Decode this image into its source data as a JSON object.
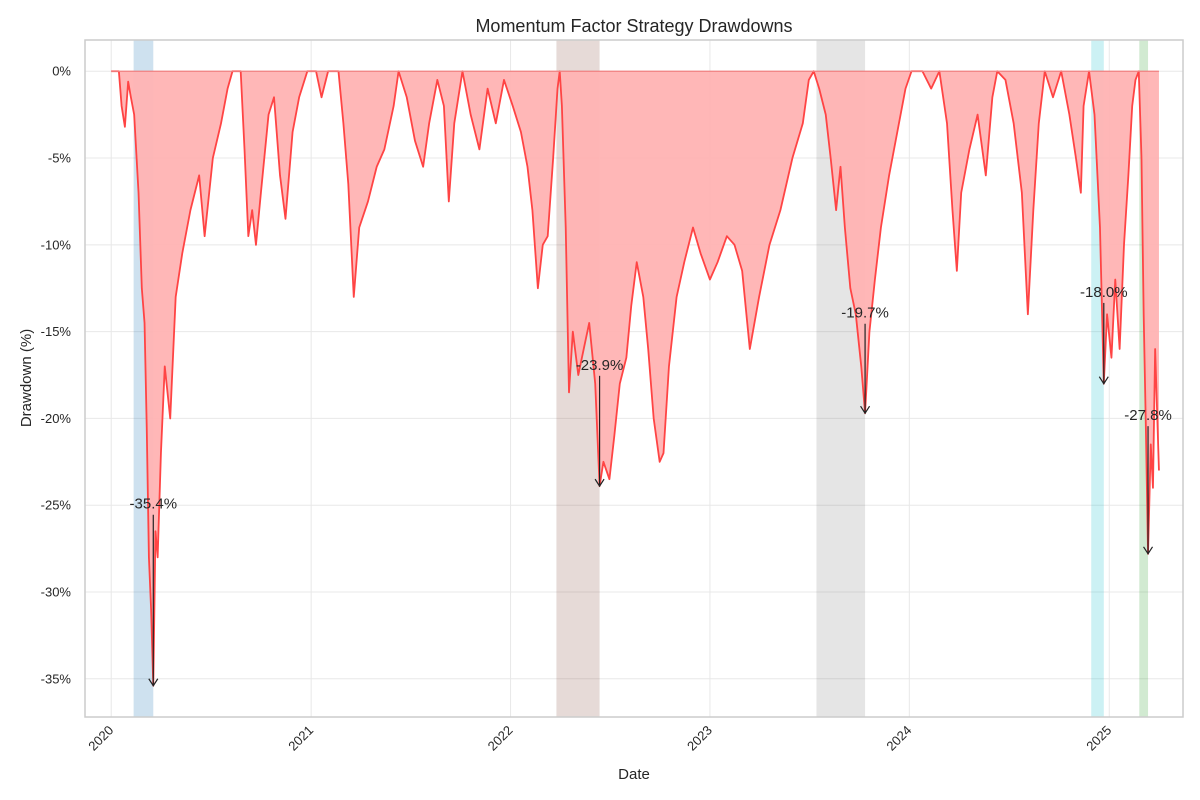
{
  "chart_data": {
    "type": "area",
    "title": "Momentum Factor Strategy Drawdowns",
    "xlabel": "Date",
    "ylabel": "Drawdown (%)",
    "xlim": [
      "2019-11-14",
      "2025-05-16"
    ],
    "ylim": [
      -37.2,
      1.8
    ],
    "grid": true,
    "x_ticks": [
      {
        "date": "2020-01-01",
        "label": "2020"
      },
      {
        "date": "2021-01-01",
        "label": "2021"
      },
      {
        "date": "2022-01-01",
        "label": "2022"
      },
      {
        "date": "2023-01-01",
        "label": "2023"
      },
      {
        "date": "2024-01-01",
        "label": "2024"
      },
      {
        "date": "2025-01-01",
        "label": "2025"
      }
    ],
    "y_ticks": [
      {
        "value": 0,
        "label": "0%"
      },
      {
        "value": -5,
        "label": "-5%"
      },
      {
        "value": -10,
        "label": "-10%"
      },
      {
        "value": -15,
        "label": "-15%"
      },
      {
        "value": -20,
        "label": "-20%"
      },
      {
        "value": -25,
        "label": "-25%"
      },
      {
        "value": -30,
        "label": "-30%"
      },
      {
        "value": -35,
        "label": "-35%"
      }
    ],
    "series": [
      {
        "line_color": "#ff4444",
        "fill_color": "#ffb3b3",
        "points": [
          [
            "2020-01-01",
            0
          ],
          [
            "2020-01-15",
            0
          ],
          [
            "2020-01-20",
            -2.0
          ],
          [
            "2020-01-26",
            -3.2
          ],
          [
            "2020-02-01",
            -0.6
          ],
          [
            "2020-02-06",
            -1.5
          ],
          [
            "2020-02-12",
            -2.5
          ],
          [
            "2020-02-20",
            -7.0
          ],
          [
            "2020-02-26",
            -12.5
          ],
          [
            "2020-03-02",
            -14.5
          ],
          [
            "2020-03-06",
            -20.5
          ],
          [
            "2020-03-10",
            -28.0
          ],
          [
            "2020-03-14",
            -31.0
          ],
          [
            "2020-03-18",
            -35.4
          ],
          [
            "2020-03-22",
            -26.5
          ],
          [
            "2020-03-26",
            -28.0
          ],
          [
            "2020-04-01",
            -22.0
          ],
          [
            "2020-04-08",
            -17.0
          ],
          [
            "2020-04-18",
            -20.0
          ],
          [
            "2020-04-28",
            -13.0
          ],
          [
            "2020-05-10",
            -10.5
          ],
          [
            "2020-05-25",
            -8.0
          ],
          [
            "2020-06-10",
            -6.0
          ],
          [
            "2020-06-20",
            -9.5
          ],
          [
            "2020-07-05",
            -5.0
          ],
          [
            "2020-07-20",
            -3.0
          ],
          [
            "2020-08-01",
            -1.0
          ],
          [
            "2020-08-10",
            0
          ],
          [
            "2020-08-25",
            0
          ],
          [
            "2020-09-01",
            -4.5
          ],
          [
            "2020-09-08",
            -9.5
          ],
          [
            "2020-09-15",
            -8.0
          ],
          [
            "2020-09-22",
            -10.0
          ],
          [
            "2020-10-01",
            -7.0
          ],
          [
            "2020-10-15",
            -2.5
          ],
          [
            "2020-10-25",
            -1.5
          ],
          [
            "2020-11-05",
            -6.0
          ],
          [
            "2020-11-15",
            -8.5
          ],
          [
            "2020-11-28",
            -3.5
          ],
          [
            "2020-12-10",
            -1.5
          ],
          [
            "2020-12-25",
            0
          ],
          [
            "2021-01-10",
            0
          ],
          [
            "2021-01-20",
            -1.5
          ],
          [
            "2021-02-01",
            0
          ],
          [
            "2021-02-20",
            0
          ],
          [
            "2021-03-01",
            -3.0
          ],
          [
            "2021-03-10",
            -6.5
          ],
          [
            "2021-03-20",
            -13.0
          ],
          [
            "2021-03-30",
            -9.0
          ],
          [
            "2021-04-15",
            -7.5
          ],
          [
            "2021-05-01",
            -5.5
          ],
          [
            "2021-05-15",
            -4.5
          ],
          [
            "2021-06-01",
            -2.0
          ],
          [
            "2021-06-10",
            0
          ],
          [
            "2021-06-25",
            -1.5
          ],
          [
            "2021-07-10",
            -4.0
          ],
          [
            "2021-07-25",
            -5.5
          ],
          [
            "2021-08-05",
            -3.0
          ],
          [
            "2021-08-20",
            -0.5
          ],
          [
            "2021-09-01",
            -2.0
          ],
          [
            "2021-09-10",
            -7.5
          ],
          [
            "2021-09-20",
            -3.0
          ],
          [
            "2021-10-05",
            0
          ],
          [
            "2021-10-20",
            -2.5
          ],
          [
            "2021-11-05",
            -4.5
          ],
          [
            "2021-11-20",
            -1.0
          ],
          [
            "2021-12-05",
            -3.0
          ],
          [
            "2021-12-20",
            -0.5
          ],
          [
            "2022-01-05",
            -2.0
          ],
          [
            "2022-01-20",
            -3.5
          ],
          [
            "2022-02-01",
            -5.5
          ],
          [
            "2022-02-10",
            -8.0
          ],
          [
            "2022-02-20",
            -12.5
          ],
          [
            "2022-03-01",
            -10.0
          ],
          [
            "2022-03-10",
            -9.5
          ],
          [
            "2022-03-20",
            -5.0
          ],
          [
            "2022-03-28",
            -1.0
          ],
          [
            "2022-04-01",
            0
          ],
          [
            "2022-04-05",
            -2.0
          ],
          [
            "2022-04-12",
            -9.0
          ],
          [
            "2022-04-18",
            -18.5
          ],
          [
            "2022-04-25",
            -15.0
          ],
          [
            "2022-05-05",
            -17.5
          ],
          [
            "2022-05-15",
            -16.0
          ],
          [
            "2022-05-25",
            -14.5
          ],
          [
            "2022-06-05",
            -18.0
          ],
          [
            "2022-06-13",
            -23.9
          ],
          [
            "2022-06-20",
            -22.5
          ],
          [
            "2022-07-01",
            -23.5
          ],
          [
            "2022-07-10",
            -21.0
          ],
          [
            "2022-07-20",
            -18.0
          ],
          [
            "2022-08-01",
            -16.5
          ],
          [
            "2022-08-10",
            -13.5
          ],
          [
            "2022-08-20",
            -11.0
          ],
          [
            "2022-09-01",
            -13.0
          ],
          [
            "2022-09-10",
            -16.0
          ],
          [
            "2022-09-20",
            -20.0
          ],
          [
            "2022-10-01",
            -22.5
          ],
          [
            "2022-10-08",
            -22.0
          ],
          [
            "2022-10-18",
            -17.0
          ],
          [
            "2022-11-01",
            -13.0
          ],
          [
            "2022-11-15",
            -11.0
          ],
          [
            "2022-12-01",
            -9.0
          ],
          [
            "2022-12-15",
            -10.5
          ],
          [
            "2023-01-01",
            -12.0
          ],
          [
            "2023-01-15",
            -11.0
          ],
          [
            "2023-02-01",
            -9.5
          ],
          [
            "2023-02-15",
            -10.0
          ],
          [
            "2023-03-01",
            -11.5
          ],
          [
            "2023-03-15",
            -16.0
          ],
          [
            "2023-04-01",
            -13.0
          ],
          [
            "2023-04-20",
            -10.0
          ],
          [
            "2023-05-10",
            -8.0
          ],
          [
            "2023-06-01",
            -5.0
          ],
          [
            "2023-06-20",
            -3.0
          ],
          [
            "2023-07-01",
            -0.5
          ],
          [
            "2023-07-10",
            0
          ],
          [
            "2023-07-20",
            -1.0
          ],
          [
            "2023-08-01",
            -2.5
          ],
          [
            "2023-08-10",
            -5.0
          ],
          [
            "2023-08-20",
            -8.0
          ],
          [
            "2023-08-28",
            -5.5
          ],
          [
            "2023-09-05",
            -9.0
          ],
          [
            "2023-09-15",
            -12.5
          ],
          [
            "2023-09-25",
            -14.0
          ],
          [
            "2023-10-05",
            -17.0
          ],
          [
            "2023-10-12",
            -19.7
          ],
          [
            "2023-10-20",
            -15.0
          ],
          [
            "2023-10-30",
            -12.0
          ],
          [
            "2023-11-10",
            -9.0
          ],
          [
            "2023-11-25",
            -6.0
          ],
          [
            "2023-12-10",
            -3.5
          ],
          [
            "2023-12-25",
            -1.0
          ],
          [
            "2024-01-05",
            0
          ],
          [
            "2024-01-25",
            0
          ],
          [
            "2024-02-10",
            -1.0
          ],
          [
            "2024-02-25",
            0
          ],
          [
            "2024-03-10",
            -3.0
          ],
          [
            "2024-03-20",
            -8.0
          ],
          [
            "2024-03-28",
            -11.5
          ],
          [
            "2024-04-05",
            -7.0
          ],
          [
            "2024-04-20",
            -4.5
          ],
          [
            "2024-05-05",
            -2.5
          ],
          [
            "2024-05-20",
            -6.0
          ],
          [
            "2024-06-01",
            -1.5
          ],
          [
            "2024-06-10",
            0
          ],
          [
            "2024-06-25",
            -0.5
          ],
          [
            "2024-07-10",
            -3.0
          ],
          [
            "2024-07-25",
            -7.0
          ],
          [
            "2024-08-05",
            -14.0
          ],
          [
            "2024-08-15",
            -8.0
          ],
          [
            "2024-08-25",
            -3.0
          ],
          [
            "2024-09-05",
            0
          ],
          [
            "2024-09-20",
            -1.5
          ],
          [
            "2024-10-05",
            0
          ],
          [
            "2024-10-20",
            -2.5
          ],
          [
            "2024-11-01",
            -5.0
          ],
          [
            "2024-11-10",
            -7.0
          ],
          [
            "2024-11-15",
            -2.0
          ],
          [
            "2024-11-25",
            0
          ],
          [
            "2024-12-05",
            -2.5
          ],
          [
            "2024-12-15",
            -9.0
          ],
          [
            "2024-12-22",
            -18.0
          ],
          [
            "2024-12-28",
            -14.0
          ],
          [
            "2025-01-05",
            -16.5
          ],
          [
            "2025-01-12",
            -12.0
          ],
          [
            "2025-01-20",
            -16.0
          ],
          [
            "2025-01-28",
            -10.0
          ],
          [
            "2025-02-05",
            -6.0
          ],
          [
            "2025-02-12",
            -2.0
          ],
          [
            "2025-02-18",
            -0.5
          ],
          [
            "2025-02-24",
            0
          ],
          [
            "2025-03-01",
            -5.0
          ],
          [
            "2025-03-05",
            -14.0
          ],
          [
            "2025-03-09",
            -20.5
          ],
          [
            "2025-03-13",
            -27.8
          ],
          [
            "2025-03-18",
            -21.5
          ],
          [
            "2025-03-22",
            -24.0
          ],
          [
            "2025-03-26",
            -16.0
          ],
          [
            "2025-03-29",
            -19.0
          ],
          [
            "2025-04-02",
            -23.0
          ]
        ]
      }
    ],
    "shaded_periods": [
      {
        "start": "2020-02-11",
        "end": "2020-03-18",
        "color": "#1f77b4",
        "opacity": 0.22
      },
      {
        "start": "2022-03-26",
        "end": "2022-06-13",
        "color": "#8c564b",
        "opacity": 0.22
      },
      {
        "start": "2023-07-15",
        "end": "2023-10-12",
        "color": "#7f7f7f",
        "opacity": 0.2
      },
      {
        "start": "2024-11-29",
        "end": "2024-12-22",
        "color": "#17becf",
        "opacity": 0.22
      },
      {
        "start": "2025-02-25",
        "end": "2025-03-13",
        "color": "#2ca02c",
        "opacity": 0.22
      }
    ],
    "annotations": [
      {
        "date": "2020-03-18",
        "value": -35.4,
        "label": "-35.4%",
        "label_value": -25.2
      },
      {
        "date": "2022-06-13",
        "value": -23.9,
        "label": "-23.9%",
        "label_value": -17.2
      },
      {
        "date": "2023-10-12",
        "value": -19.7,
        "label": "-19.7%",
        "label_value": -14.2
      },
      {
        "date": "2024-12-22",
        "value": -18.0,
        "label": "-18.0%",
        "label_value": -13.0
      },
      {
        "date": "2025-03-13",
        "value": -27.8,
        "label": "-27.8%",
        "label_value": -20.1
      }
    ]
  }
}
